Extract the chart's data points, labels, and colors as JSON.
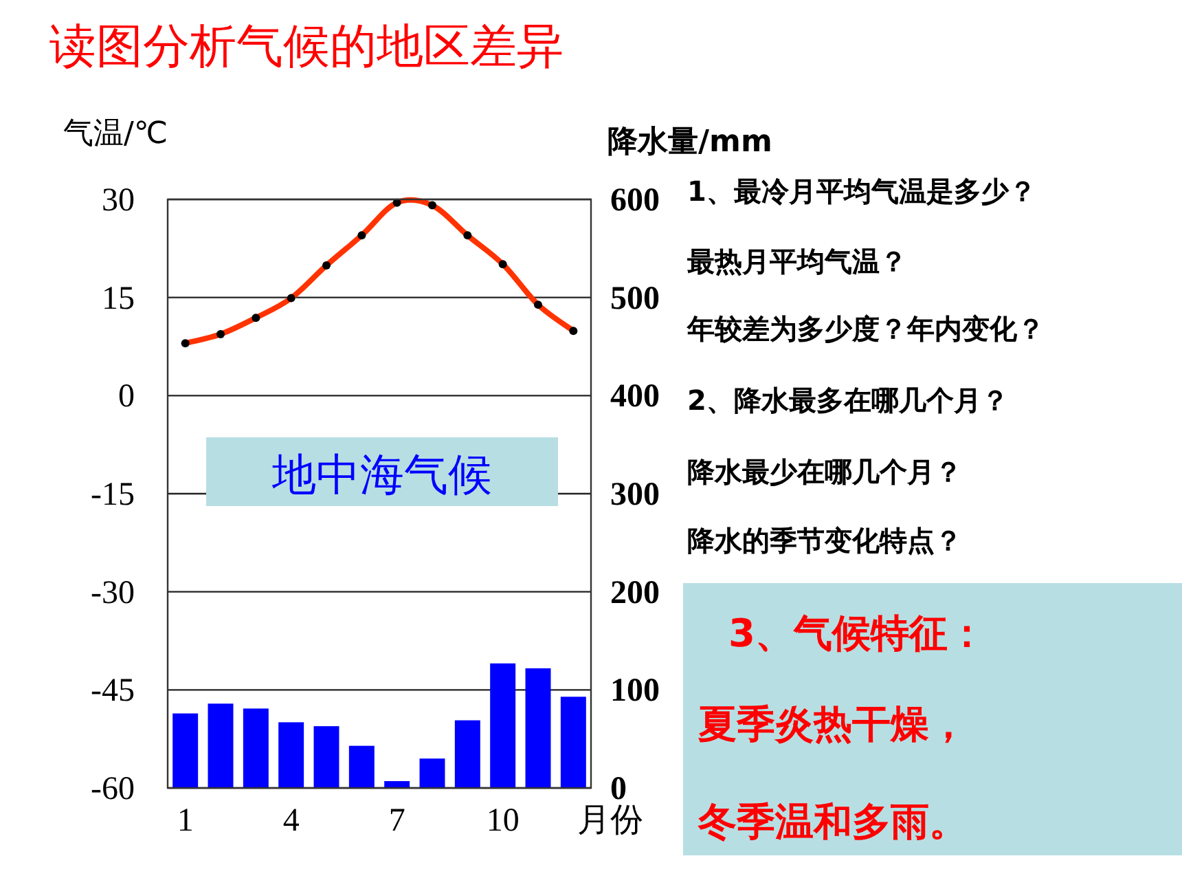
{
  "chart_data": {
    "type": "bar",
    "title": "读图分析气候的地区差异",
    "categories": [
      "1",
      null,
      null,
      "4",
      null,
      null,
      "7",
      null,
      null,
      "10",
      null,
      null
    ],
    "xlabel": "月份",
    "ylabel": "气温/℃",
    "y2label": "降水量/mm",
    "series": [
      {
        "name": null,
        "type": "line",
        "color": "#ff3300",
        "values": [
          8.0,
          9.4,
          11.9,
          14.9,
          19.9,
          24.5,
          29.5,
          29.1,
          24.5,
          20.1,
          13.9,
          9.9
        ]
      },
      {
        "name": null,
        "type": "scatter",
        "color": "#000000",
        "marker": "circle",
        "values": [
          8.0,
          9.4,
          11.9,
          14.9,
          19.9,
          24.5,
          29.5,
          29.1,
          24.5,
          20.1,
          13.9,
          9.9
        ]
      },
      {
        "name": null,
        "axis": "y2",
        "color": "#0000ff",
        "values": [
          76,
          86,
          81,
          67,
          63,
          43,
          7,
          30,
          69,
          127,
          122,
          93
        ]
      }
    ],
    "ylim": [
      -60,
      30
    ],
    "yticks": [
      -60,
      -45,
      -30,
      -15,
      0,
      15,
      30
    ],
    "y2lim": [
      0,
      600
    ],
    "y2ticks": [
      0,
      100,
      200,
      300,
      400,
      500,
      600
    ],
    "grid": "y",
    "annotations": [
      "地中海气候",
      "1、最冷月平均气温是多少？",
      "最热月平均气温？",
      "年较差为多少度？年内变化？",
      "2、降水最多在哪几个月？",
      "降水最少在哪几个月？",
      "降水的季节变化特点？",
      "3、气候特征：",
      "夏季炎热干燥，",
      "冬季温和多雨。"
    ]
  }
}
